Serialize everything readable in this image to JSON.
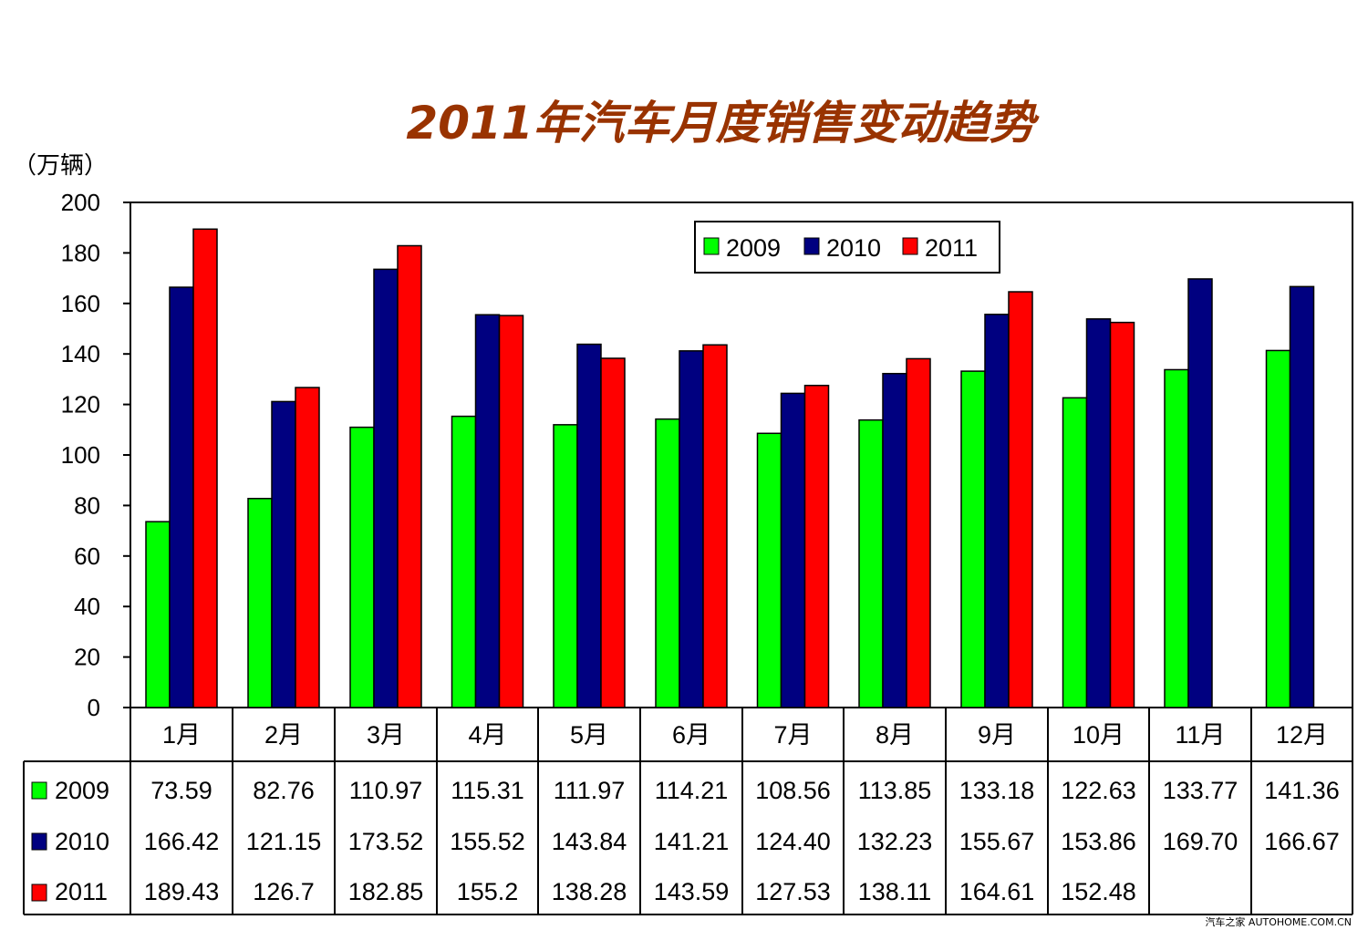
{
  "watermark": "汽车之家 AUTOHOME.COM.CN",
  "chart_data": {
    "type": "bar",
    "title": "2011年汽车月度销售变动趋势",
    "ylabel": "（万辆）",
    "ylim": [
      0,
      200
    ],
    "yticks": [
      0,
      20,
      40,
      60,
      80,
      100,
      120,
      140,
      160,
      180,
      200
    ],
    "grid": false,
    "legend": "top-right",
    "categories": [
      "1月",
      "2月",
      "3月",
      "4月",
      "5月",
      "6月",
      "7月",
      "8月",
      "9月",
      "10月",
      "11月",
      "12月"
    ],
    "series": [
      {
        "name": "2009",
        "color": "#00ff00",
        "values": [
          73.59,
          82.76,
          110.97,
          115.31,
          111.97,
          114.21,
          108.56,
          113.85,
          133.18,
          122.63,
          133.77,
          141.36
        ],
        "labels": [
          "73.59",
          "82.76",
          "110.97",
          "115.31",
          "111.97",
          "114.21",
          "108.56",
          "113.85",
          "133.18",
          "122.63",
          "133.77",
          "141.36"
        ]
      },
      {
        "name": "2010",
        "color": "#000080",
        "values": [
          166.42,
          121.15,
          173.52,
          155.52,
          143.84,
          141.21,
          124.4,
          132.23,
          155.67,
          153.86,
          169.7,
          166.67
        ],
        "labels": [
          "166.42",
          "121.15",
          "173.52",
          "155.52",
          "143.84",
          "141.21",
          "124.40",
          "132.23",
          "155.67",
          "153.86",
          "169.70",
          "166.67"
        ]
      },
      {
        "name": "2011",
        "color": "#ff0000",
        "values": [
          189.43,
          126.7,
          182.85,
          155.2,
          138.28,
          143.59,
          127.53,
          138.11,
          164.61,
          152.48,
          null,
          null
        ],
        "labels": [
          "189.43",
          "126.7",
          "182.85",
          "155.2",
          "138.28",
          "143.59",
          "127.53",
          "138.11",
          "164.61",
          "152.48",
          "",
          ""
        ]
      }
    ]
  }
}
